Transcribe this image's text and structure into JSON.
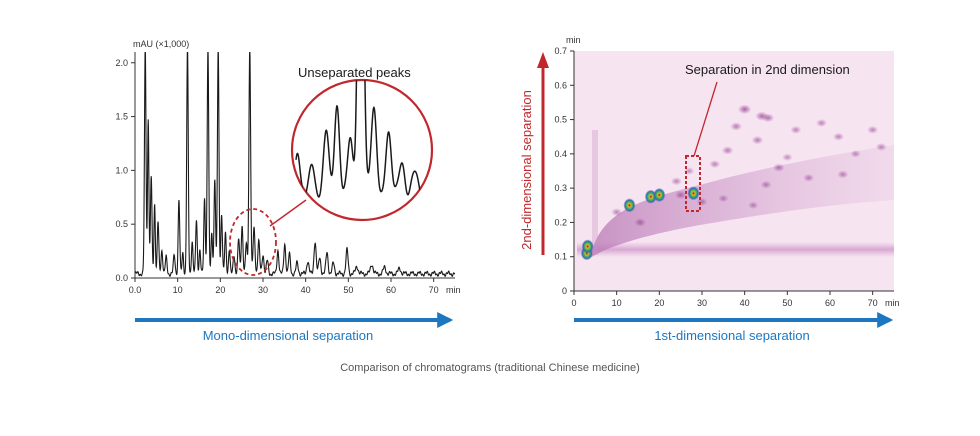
{
  "caption": "Comparison of chromatograms (traditional Chinese medicine)",
  "colors": {
    "blue_arrow": "#1d77c0",
    "red_accent": "#c0282e",
    "axis": "#333333",
    "trace": "#1a1a1a",
    "heatmap_background": "#f7e4f1",
    "heatmap_peak": "#8a2d8a"
  },
  "chart_data": [
    {
      "type": "line",
      "title": "",
      "ylabel": "mAU (×1,000)",
      "xunit": "min",
      "xlim": [
        0,
        75
      ],
      "ylim": [
        0,
        2.1
      ],
      "xticks": [
        0.0,
        10,
        20,
        30,
        40,
        50,
        60,
        70
      ],
      "xtick_labels": [
        "0.0",
        "10",
        "20",
        "30",
        "40",
        "50",
        "60",
        "70"
      ],
      "yticks": [
        0.0,
        0.5,
        1.0,
        1.5,
        2.0
      ],
      "ytick_labels": [
        "0.0",
        "0.5",
        "1.0",
        "1.5",
        "2.0"
      ],
      "baseline": 0.04,
      "series": [
        {
          "peaks": [
            {
              "x": 2.4,
              "h": 2.1,
              "w": 0.18
            },
            {
              "x": 3.1,
              "h": 1.45,
              "w": 0.16
            },
            {
              "x": 3.8,
              "h": 0.9,
              "w": 0.18
            },
            {
              "x": 4.6,
              "h": 0.65,
              "w": 0.16
            },
            {
              "x": 5.4,
              "h": 0.48,
              "w": 0.18
            },
            {
              "x": 6.3,
              "h": 0.22,
              "w": 0.2
            },
            {
              "x": 7.3,
              "h": 0.15,
              "w": 0.2
            },
            {
              "x": 9.2,
              "h": 0.17,
              "w": 0.2
            },
            {
              "x": 10.3,
              "h": 0.68,
              "w": 0.18
            },
            {
              "x": 11.2,
              "h": 0.2,
              "w": 0.18
            },
            {
              "x": 12.3,
              "h": 2.1,
              "w": 0.18
            },
            {
              "x": 13.4,
              "h": 0.3,
              "w": 0.18
            },
            {
              "x": 14.4,
              "h": 0.5,
              "w": 0.18
            },
            {
              "x": 15.2,
              "h": 0.22,
              "w": 0.18
            },
            {
              "x": 16.3,
              "h": 0.7,
              "w": 0.18
            },
            {
              "x": 17.1,
              "h": 2.1,
              "w": 0.18
            },
            {
              "x": 18.0,
              "h": 0.38,
              "w": 0.18
            },
            {
              "x": 18.7,
              "h": 0.88,
              "w": 0.18
            },
            {
              "x": 19.5,
              "h": 2.1,
              "w": 0.18
            },
            {
              "x": 20.3,
              "h": 0.55,
              "w": 0.18
            },
            {
              "x": 21.2,
              "h": 0.38,
              "w": 0.18
            },
            {
              "x": 22.1,
              "h": 0.22,
              "w": 0.18
            },
            {
              "x": 23.2,
              "h": 0.18,
              "w": 0.2
            },
            {
              "x": 24.3,
              "h": 0.32,
              "w": 0.2
            },
            {
              "x": 25.1,
              "h": 0.45,
              "w": 0.2
            },
            {
              "x": 26.1,
              "h": 0.28,
              "w": 0.2
            },
            {
              "x": 26.9,
              "h": 2.1,
              "w": 0.2
            },
            {
              "x": 27.9,
              "h": 0.42,
              "w": 0.22
            },
            {
              "x": 29.0,
              "h": 0.3,
              "w": 0.22
            },
            {
              "x": 30.0,
              "h": 0.18,
              "w": 0.22
            },
            {
              "x": 31.0,
              "h": 0.12,
              "w": 0.22
            },
            {
              "x": 33.5,
              "h": 0.22,
              "w": 0.22
            },
            {
              "x": 35.1,
              "h": 0.28,
              "w": 0.22
            },
            {
              "x": 36.2,
              "h": 0.18,
              "w": 0.22
            },
            {
              "x": 38.0,
              "h": 0.1,
              "w": 0.25
            },
            {
              "x": 40.5,
              "h": 0.12,
              "w": 0.25
            },
            {
              "x": 42.2,
              "h": 0.3,
              "w": 0.25
            },
            {
              "x": 43.3,
              "h": 0.15,
              "w": 0.25
            },
            {
              "x": 45.0,
              "h": 0.2,
              "w": 0.25
            },
            {
              "x": 46.5,
              "h": 0.1,
              "w": 0.25
            },
            {
              "x": 49.7,
              "h": 0.22,
              "w": 0.25
            },
            {
              "x": 52.0,
              "h": 0.07,
              "w": 0.3
            },
            {
              "x": 55.5,
              "h": 0.09,
              "w": 0.3
            },
            {
              "x": 58.5,
              "h": 0.06,
              "w": 0.3
            },
            {
              "x": 62.0,
              "h": 0.05,
              "w": 0.3
            }
          ]
        }
      ],
      "annotation": "Unseparated peaks",
      "arrow_label": "Mono-dimensional separation"
    },
    {
      "type": "heatmap",
      "title": "",
      "ylabel": "2nd-dimensional separation",
      "yunit": "min",
      "xunit": "min",
      "xlim": [
        0,
        75
      ],
      "ylim": [
        0,
        0.7
      ],
      "xticks": [
        0,
        10,
        20,
        30,
        40,
        50,
        60,
        70
      ],
      "xtick_labels": [
        "0",
        "10",
        "20",
        "30",
        "40",
        "50",
        "60",
        "70"
      ],
      "yticks": [
        0,
        0.1,
        0.2,
        0.3,
        0.4,
        0.5,
        0.6,
        0.7
      ],
      "ytick_labels": [
        "0",
        "0.1",
        "0.2",
        "0.3",
        "0.4",
        "0.5",
        "0.6",
        "0.7"
      ],
      "band_y": 0.115,
      "spots": [
        {
          "x": 3.0,
          "y": 0.11,
          "i": 1.0
        },
        {
          "x": 3.2,
          "y": 0.13,
          "i": 0.9
        },
        {
          "x": 13.0,
          "y": 0.25,
          "i": 0.85
        },
        {
          "x": 18.0,
          "y": 0.275,
          "i": 1.0
        },
        {
          "x": 20.0,
          "y": 0.28,
          "i": 0.9
        },
        {
          "x": 28.0,
          "y": 0.285,
          "i": 0.85
        },
        {
          "x": 40.0,
          "y": 0.53,
          "i": 0.45
        },
        {
          "x": 44.0,
          "y": 0.51,
          "i": 0.4
        },
        {
          "x": 45.5,
          "y": 0.505,
          "i": 0.35
        },
        {
          "x": 38.0,
          "y": 0.48,
          "i": 0.3
        },
        {
          "x": 36.0,
          "y": 0.41,
          "i": 0.3
        },
        {
          "x": 43.0,
          "y": 0.44,
          "i": 0.3
        },
        {
          "x": 52.0,
          "y": 0.47,
          "i": 0.25
        },
        {
          "x": 58.0,
          "y": 0.49,
          "i": 0.25
        },
        {
          "x": 62.0,
          "y": 0.45,
          "i": 0.25
        },
        {
          "x": 70.0,
          "y": 0.47,
          "i": 0.25
        },
        {
          "x": 48.0,
          "y": 0.36,
          "i": 0.3
        },
        {
          "x": 55.0,
          "y": 0.33,
          "i": 0.25
        },
        {
          "x": 63.0,
          "y": 0.34,
          "i": 0.25
        },
        {
          "x": 72.0,
          "y": 0.42,
          "i": 0.25
        },
        {
          "x": 45.0,
          "y": 0.31,
          "i": 0.25
        },
        {
          "x": 33.0,
          "y": 0.37,
          "i": 0.25
        },
        {
          "x": 24.0,
          "y": 0.32,
          "i": 0.25
        },
        {
          "x": 27.0,
          "y": 0.35,
          "i": 0.2
        },
        {
          "x": 30.0,
          "y": 0.26,
          "i": 0.25
        },
        {
          "x": 35.0,
          "y": 0.27,
          "i": 0.2
        },
        {
          "x": 42.0,
          "y": 0.25,
          "i": 0.2
        },
        {
          "x": 50.0,
          "y": 0.39,
          "i": 0.2
        },
        {
          "x": 66.0,
          "y": 0.4,
          "i": 0.2
        },
        {
          "x": 15.5,
          "y": 0.2,
          "i": 0.3
        },
        {
          "x": 10.0,
          "y": 0.23,
          "i": 0.25
        },
        {
          "x": 25.0,
          "y": 0.28,
          "i": 0.3
        }
      ],
      "annotation": "Separation in 2nd dimension",
      "arrow_label": "1st-dimensional separation"
    }
  ]
}
